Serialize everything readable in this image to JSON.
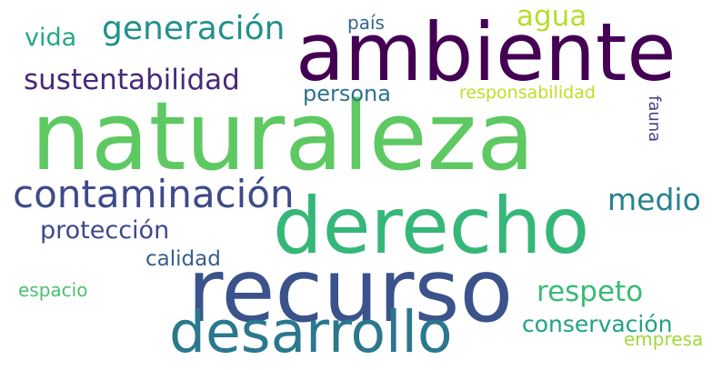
{
  "words": {
    "naturaleza": "naturaleza",
    "ambiente": "ambiente",
    "derecho": "derecho",
    "recurso": "recurso",
    "desarrollo": "desarrollo",
    "contaminacion": "contaminación",
    "generacion": "generación",
    "sustentabilidad": "sustentabilidad",
    "agua": "agua",
    "vida": "vida",
    "pais": "país",
    "persona": "persona",
    "responsabilidad": "responsabilidad",
    "fauna": "fauna",
    "medio": "medio",
    "proteccion": "protección",
    "calidad": "calidad",
    "respeto": "respeto",
    "espacio": "espacio",
    "conservacion": "conservación",
    "empresa": "empresa"
  },
  "colors": {
    "naturaleza": "#5ec962",
    "ambiente": "#440154",
    "derecho": "#35b779",
    "recurso": "#3b528b",
    "desarrollo": "#2a788e",
    "contaminacion": "#3e4a89",
    "generacion": "#21918c",
    "sustentabilidad": "#482878",
    "agua": "#b5de2b",
    "vida": "#22a884",
    "pais": "#31688e",
    "persona": "#2c728e",
    "responsabilidad": "#bddf26",
    "fauna": "#414487",
    "medio": "#26828e",
    "proteccion": "#3e4989",
    "calidad": "#355f8d",
    "respeto": "#3aba76",
    "espacio": "#4ac16d",
    "conservacion": "#1fa187",
    "empresa": "#a0da39"
  }
}
